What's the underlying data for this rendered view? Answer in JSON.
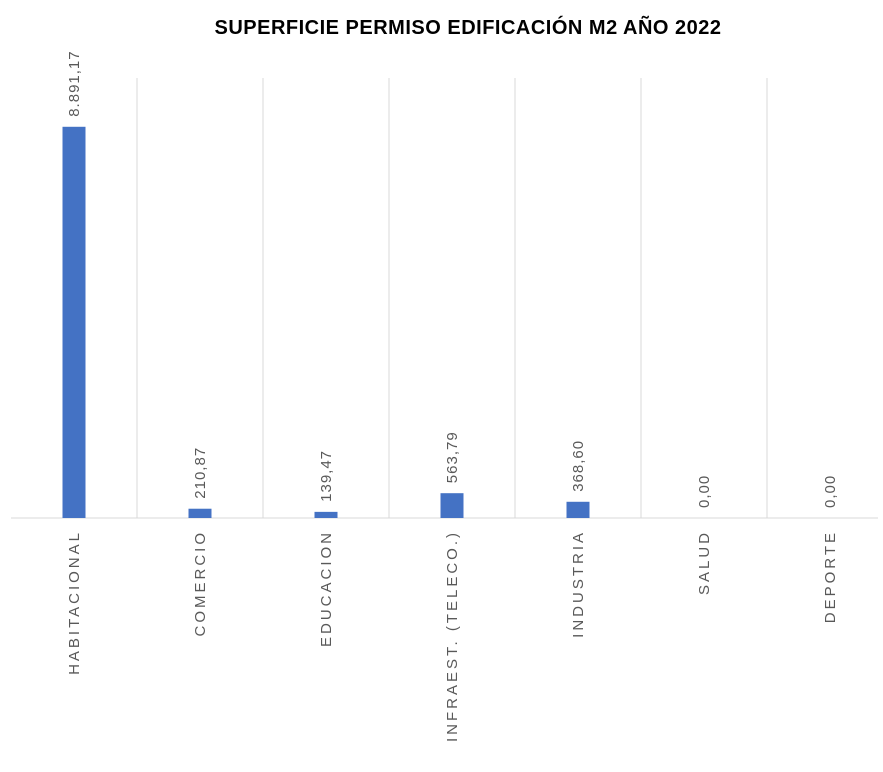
{
  "chart_data": {
    "type": "bar",
    "title": "SUPERFICIE PERMISO EDIFICACIÓN M2 AÑO 2022",
    "categories": [
      "HABITACIONAL",
      "COMERCIO",
      "EDUCACION",
      "INFRAEST. (TELECO.)",
      "INDUSTRIA",
      "SALUD",
      "DEPORTE"
    ],
    "values": [
      8891.17,
      210.87,
      139.47,
      563.79,
      368.6,
      0,
      0
    ],
    "value_labels": [
      "8.891,17",
      "210,87",
      "139,47",
      "563,79",
      "368,60",
      "0,00",
      "0,00"
    ],
    "color": "#4472c4",
    "ylim": [
      0,
      10000
    ]
  }
}
